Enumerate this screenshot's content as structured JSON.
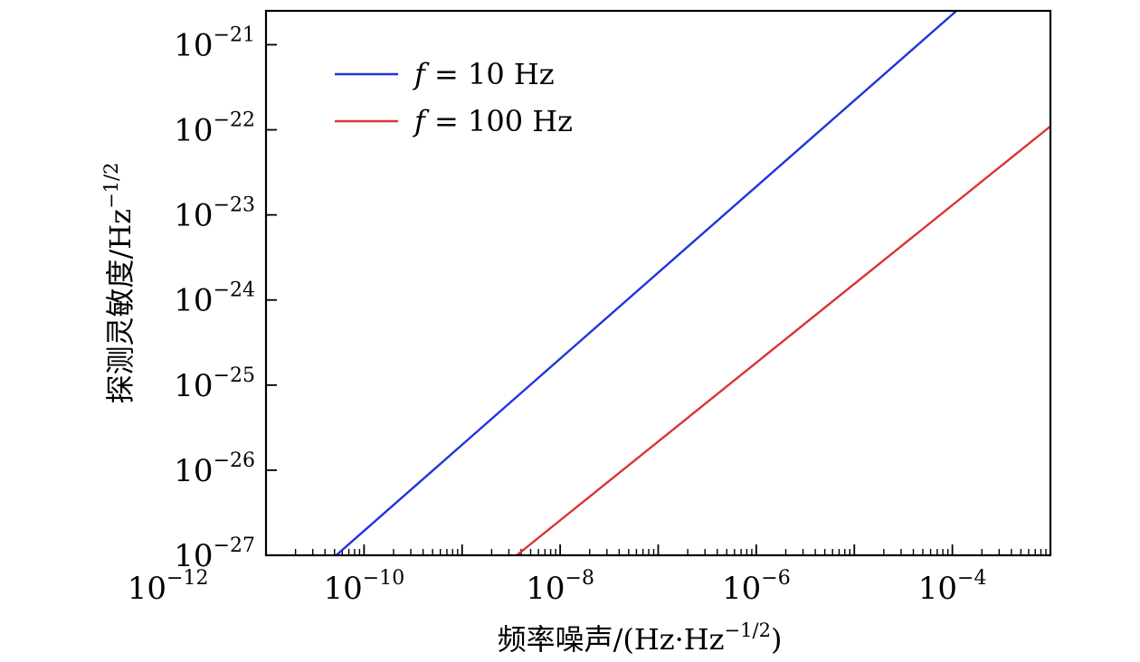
{
  "chart_data": {
    "type": "line",
    "xscale": "log",
    "yscale": "log",
    "xlim": [
      1e-11,
      0.001
    ],
    "ylim": [
      1e-27,
      2.5e-21
    ],
    "xlabel": "频率噪声/(Hz·Hz⁻¹ᐟ²)",
    "xlabel_main": "频率噪声/(Hz·Hz",
    "xlabel_sup": "−1/2",
    "xlabel_end": ")",
    "ylabel_main": "探测灵敏度/Hz",
    "ylabel_sup": "−1/2",
    "x_ticks": [
      {
        "base": "10",
        "exp": "−12",
        "value": 1e-12
      },
      {
        "base": "10",
        "exp": "−10",
        "value": 1e-10
      },
      {
        "base": "10",
        "exp": "−8",
        "value": 1e-08
      },
      {
        "base": "10",
        "exp": "−6",
        "value": 1e-06
      },
      {
        "base": "10",
        "exp": "−4",
        "value": 0.0001
      }
    ],
    "y_ticks": [
      {
        "base": "10",
        "exp": "−27",
        "value": 1e-27
      },
      {
        "base": "10",
        "exp": "−26",
        "value": 1e-26
      },
      {
        "base": "10",
        "exp": "−25",
        "value": 1e-25
      },
      {
        "base": "10",
        "exp": "−24",
        "value": 1e-24
      },
      {
        "base": "10",
        "exp": "−23",
        "value": 1e-23
      },
      {
        "base": "10",
        "exp": "−22",
        "value": 1e-22
      },
      {
        "base": "10",
        "exp": "−21",
        "value": 1e-21
      }
    ],
    "legend_position": "top-left",
    "series": [
      {
        "name": "f = 10 Hz",
        "legend_italic": "f",
        "legend_rest": " = 10  Hz",
        "color": "#2233dd",
        "x": [
          5.2e-11,
          0.00011
        ],
        "y": [
          1e-27,
          2.5e-21
        ]
      },
      {
        "name": "f = 100 Hz",
        "legend_italic": "f",
        "legend_rest": " = 100  Hz",
        "color": "#dd3333",
        "x": [
          3.6e-09,
          0.001
        ],
        "y": [
          1e-27,
          1.1e-22
        ]
      }
    ],
    "grid": false
  }
}
